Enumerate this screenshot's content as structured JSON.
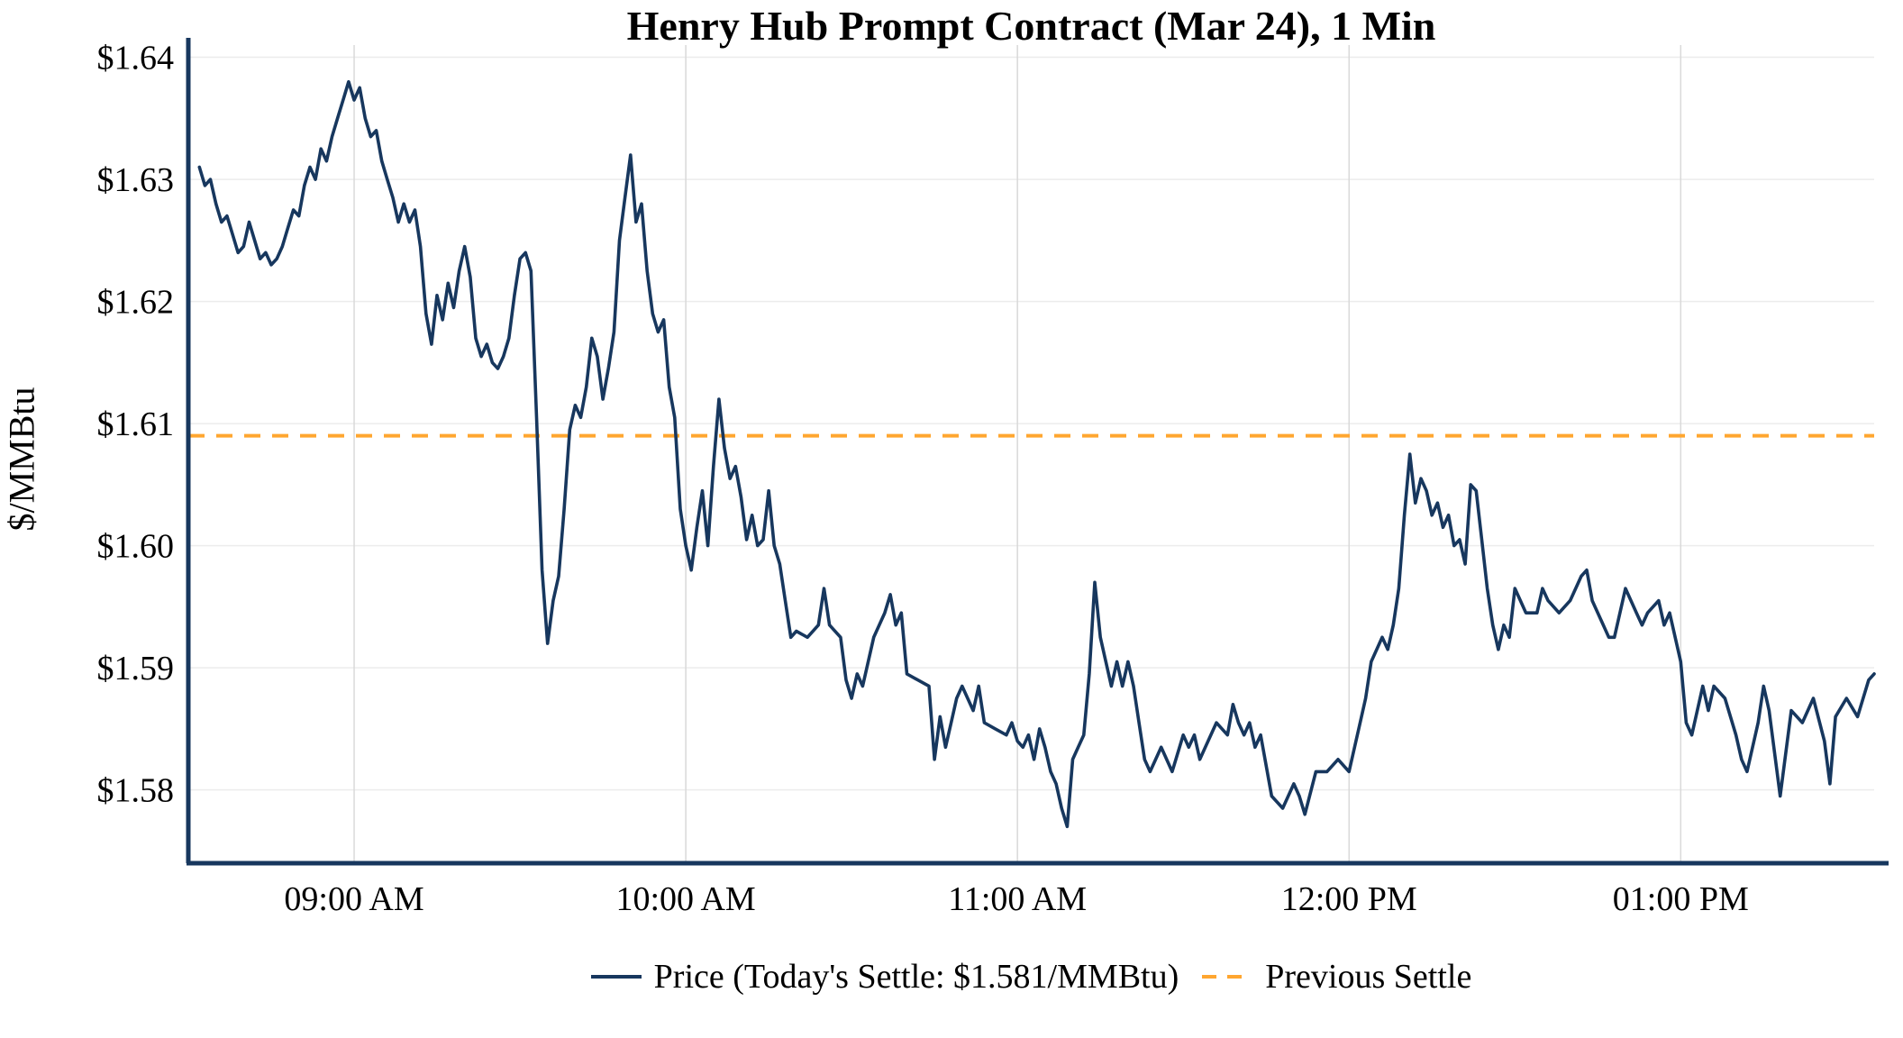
{
  "title": "Henry Hub Prompt Contract (Mar 24), 1 Min",
  "ylabel": "$/MMBtu",
  "legend": {
    "price_label": "Price (Today's Settle: $1.581/MMBtu)",
    "prev_settle_label": "Previous Settle"
  },
  "colors": {
    "price_line": "#17375e",
    "prev_settle": "#FFA630",
    "axis": "#17375e",
    "grid_v": "#d9d9d9",
    "grid_h": "#ececec",
    "text": "#000000"
  },
  "chart_data": {
    "type": "line",
    "title": "Henry Hub Prompt Contract (Mar 24), 1 Min",
    "xlabel": "",
    "ylabel": "$/MMBtu",
    "grid": true,
    "legend_position": "bottom",
    "x_unit": "minutes since 08:30 AM",
    "xlim": [
      0,
      305
    ],
    "ylim": [
      1.574,
      1.641
    ],
    "x_ticks": [
      {
        "t": 30,
        "label": "09:00 AM"
      },
      {
        "t": 90,
        "label": "10:00 AM"
      },
      {
        "t": 150,
        "label": "11:00 AM"
      },
      {
        "t": 210,
        "label": "12:00 PM"
      },
      {
        "t": 270,
        "label": "01:00 PM"
      }
    ],
    "y_ticks": [
      {
        "v": 1.58,
        "label": "$1.58"
      },
      {
        "v": 1.59,
        "label": "$1.59"
      },
      {
        "v": 1.6,
        "label": "$1.60"
      },
      {
        "v": 1.61,
        "label": "$1.61"
      },
      {
        "v": 1.62,
        "label": "$1.62"
      },
      {
        "v": 1.63,
        "label": "$1.63"
      },
      {
        "v": 1.64,
        "label": "$1.64"
      }
    ],
    "todays_settle_value": 1.581,
    "previous_settle_value": 1.609,
    "overlays": [
      {
        "name": "Previous Settle",
        "type": "hline",
        "value": 1.609,
        "style": "dashed",
        "color": "#FFA630"
      }
    ],
    "series": [
      {
        "name": "Price",
        "color": "#17375e",
        "points": [
          [
            2,
            1.631
          ],
          [
            3,
            1.6295
          ],
          [
            4,
            1.63
          ],
          [
            5,
            1.628
          ],
          [
            6,
            1.6265
          ],
          [
            7,
            1.627
          ],
          [
            8,
            1.6255
          ],
          [
            9,
            1.624
          ],
          [
            10,
            1.6245
          ],
          [
            11,
            1.6265
          ],
          [
            12,
            1.625
          ],
          [
            13,
            1.6235
          ],
          [
            14,
            1.624
          ],
          [
            15,
            1.623
          ],
          [
            16,
            1.6235
          ],
          [
            17,
            1.6245
          ],
          [
            18,
            1.626
          ],
          [
            19,
            1.6275
          ],
          [
            20,
            1.627
          ],
          [
            21,
            1.6295
          ],
          [
            22,
            1.631
          ],
          [
            23,
            1.63
          ],
          [
            24,
            1.6325
          ],
          [
            25,
            1.6315
          ],
          [
            26,
            1.6335
          ],
          [
            27,
            1.635
          ],
          [
            28,
            1.6365
          ],
          [
            29,
            1.638
          ],
          [
            30,
            1.6365
          ],
          [
            31,
            1.6375
          ],
          [
            32,
            1.635
          ],
          [
            33,
            1.6335
          ],
          [
            34,
            1.634
          ],
          [
            35,
            1.6315
          ],
          [
            36,
            1.63
          ],
          [
            37,
            1.6285
          ],
          [
            38,
            1.6265
          ],
          [
            39,
            1.628
          ],
          [
            40,
            1.6265
          ],
          [
            41,
            1.6275
          ],
          [
            42,
            1.6245
          ],
          [
            43,
            1.619
          ],
          [
            44,
            1.6165
          ],
          [
            45,
            1.6205
          ],
          [
            46,
            1.6185
          ],
          [
            47,
            1.6215
          ],
          [
            48,
            1.6195
          ],
          [
            49,
            1.6225
          ],
          [
            50,
            1.6245
          ],
          [
            51,
            1.622
          ],
          [
            52,
            1.617
          ],
          [
            53,
            1.6155
          ],
          [
            54,
            1.6165
          ],
          [
            55,
            1.615
          ],
          [
            56,
            1.6145
          ],
          [
            57,
            1.6155
          ],
          [
            58,
            1.617
          ],
          [
            59,
            1.6205
          ],
          [
            60,
            1.6235
          ],
          [
            61,
            1.624
          ],
          [
            62,
            1.6225
          ],
          [
            63,
            1.6105
          ],
          [
            64,
            1.598
          ],
          [
            65,
            1.592
          ],
          [
            66,
            1.5955
          ],
          [
            67,
            1.5975
          ],
          [
            68,
            1.603
          ],
          [
            69,
            1.6095
          ],
          [
            70,
            1.6115
          ],
          [
            71,
            1.6105
          ],
          [
            72,
            1.613
          ],
          [
            73,
            1.617
          ],
          [
            74,
            1.6155
          ],
          [
            75,
            1.612
          ],
          [
            76,
            1.6145
          ],
          [
            77,
            1.6175
          ],
          [
            78,
            1.625
          ],
          [
            79,
            1.6285
          ],
          [
            80,
            1.632
          ],
          [
            81,
            1.6265
          ],
          [
            82,
            1.628
          ],
          [
            83,
            1.6225
          ],
          [
            84,
            1.619
          ],
          [
            85,
            1.6175
          ],
          [
            86,
            1.6185
          ],
          [
            87,
            1.613
          ],
          [
            88,
            1.6105
          ],
          [
            89,
            1.603
          ],
          [
            90,
            1.6
          ],
          [
            91,
            1.598
          ],
          [
            92,
            1.6015
          ],
          [
            93,
            1.6045
          ],
          [
            94,
            1.6
          ],
          [
            95,
            1.6065
          ],
          [
            96,
            1.612
          ],
          [
            97,
            1.608
          ],
          [
            98,
            1.6055
          ],
          [
            99,
            1.6065
          ],
          [
            100,
            1.604
          ],
          [
            101,
            1.6005
          ],
          [
            102,
            1.6025
          ],
          [
            103,
            1.6
          ],
          [
            104,
            1.6005
          ],
          [
            105,
            1.6045
          ],
          [
            106,
            1.6
          ],
          [
            107,
            1.5985
          ],
          [
            108,
            1.5955
          ],
          [
            109,
            1.5925
          ],
          [
            110,
            1.593
          ],
          [
            112,
            1.5925
          ],
          [
            114,
            1.5935
          ],
          [
            115,
            1.5965
          ],
          [
            116,
            1.5935
          ],
          [
            118,
            1.5925
          ],
          [
            119,
            1.589
          ],
          [
            120,
            1.5875
          ],
          [
            121,
            1.5895
          ],
          [
            122,
            1.5885
          ],
          [
            124,
            1.5925
          ],
          [
            126,
            1.5945
          ],
          [
            127,
            1.596
          ],
          [
            128,
            1.5935
          ],
          [
            129,
            1.5945
          ],
          [
            130,
            1.5895
          ],
          [
            132,
            1.589
          ],
          [
            134,
            1.5885
          ],
          [
            135,
            1.5825
          ],
          [
            136,
            1.586
          ],
          [
            137,
            1.5835
          ],
          [
            138,
            1.5855
          ],
          [
            139,
            1.5875
          ],
          [
            140,
            1.5885
          ],
          [
            142,
            1.5865
          ],
          [
            143,
            1.5885
          ],
          [
            144,
            1.5855
          ],
          [
            146,
            1.585
          ],
          [
            148,
            1.5845
          ],
          [
            149,
            1.5855
          ],
          [
            150,
            1.584
          ],
          [
            151,
            1.5835
          ],
          [
            152,
            1.5845
          ],
          [
            153,
            1.5825
          ],
          [
            154,
            1.585
          ],
          [
            155,
            1.5835
          ],
          [
            156,
            1.5815
          ],
          [
            157,
            1.5805
          ],
          [
            158,
            1.5785
          ],
          [
            159,
            1.577
          ],
          [
            160,
            1.5825
          ],
          [
            161,
            1.5835
          ],
          [
            162,
            1.5845
          ],
          [
            163,
            1.5895
          ],
          [
            164,
            1.597
          ],
          [
            165,
            1.5925
          ],
          [
            166,
            1.5905
          ],
          [
            167,
            1.5885
          ],
          [
            168,
            1.5905
          ],
          [
            169,
            1.5885
          ],
          [
            170,
            1.5905
          ],
          [
            171,
            1.5885
          ],
          [
            172,
            1.5855
          ],
          [
            173,
            1.5825
          ],
          [
            174,
            1.5815
          ],
          [
            176,
            1.5835
          ],
          [
            178,
            1.5815
          ],
          [
            180,
            1.5845
          ],
          [
            181,
            1.5835
          ],
          [
            182,
            1.5845
          ],
          [
            183,
            1.5825
          ],
          [
            184,
            1.5835
          ],
          [
            186,
            1.5855
          ],
          [
            188,
            1.5845
          ],
          [
            189,
            1.587
          ],
          [
            190,
            1.5855
          ],
          [
            191,
            1.5845
          ],
          [
            192,
            1.5855
          ],
          [
            193,
            1.5835
          ],
          [
            194,
            1.5845
          ],
          [
            196,
            1.5795
          ],
          [
            198,
            1.5785
          ],
          [
            200,
            1.5805
          ],
          [
            201,
            1.5795
          ],
          [
            202,
            1.578
          ],
          [
            204,
            1.5815
          ],
          [
            206,
            1.5815
          ],
          [
            208,
            1.5825
          ],
          [
            210,
            1.5815
          ],
          [
            212,
            1.5855
          ],
          [
            213,
            1.5875
          ],
          [
            214,
            1.5905
          ],
          [
            216,
            1.5925
          ],
          [
            217,
            1.5915
          ],
          [
            218,
            1.5935
          ],
          [
            219,
            1.5965
          ],
          [
            220,
            1.6025
          ],
          [
            221,
            1.6075
          ],
          [
            222,
            1.6035
          ],
          [
            223,
            1.6055
          ],
          [
            224,
            1.6045
          ],
          [
            225,
            1.6025
          ],
          [
            226,
            1.6035
          ],
          [
            227,
            1.6015
          ],
          [
            228,
            1.6025
          ],
          [
            229,
            1.6
          ],
          [
            230,
            1.6005
          ],
          [
            231,
            1.5985
          ],
          [
            232,
            1.605
          ],
          [
            233,
            1.6045
          ],
          [
            234,
            1.6005
          ],
          [
            235,
            1.5965
          ],
          [
            236,
            1.5935
          ],
          [
            237,
            1.5915
          ],
          [
            238,
            1.5935
          ],
          [
            239,
            1.5925
          ],
          [
            240,
            1.5965
          ],
          [
            241,
            1.5955
          ],
          [
            242,
            1.5945
          ],
          [
            244,
            1.5945
          ],
          [
            245,
            1.5965
          ],
          [
            246,
            1.5955
          ],
          [
            248,
            1.5945
          ],
          [
            250,
            1.5955
          ],
          [
            252,
            1.5975
          ],
          [
            253,
            1.598
          ],
          [
            254,
            1.5955
          ],
          [
            256,
            1.5935
          ],
          [
            257,
            1.5925
          ],
          [
            258,
            1.5925
          ],
          [
            260,
            1.5965
          ],
          [
            262,
            1.5945
          ],
          [
            263,
            1.5935
          ],
          [
            264,
            1.5945
          ],
          [
            266,
            1.5955
          ],
          [
            267,
            1.5935
          ],
          [
            268,
            1.5945
          ],
          [
            270,
            1.5905
          ],
          [
            271,
            1.5855
          ],
          [
            272,
            1.5845
          ],
          [
            274,
            1.5885
          ],
          [
            275,
            1.5865
          ],
          [
            276,
            1.5885
          ],
          [
            278,
            1.5875
          ],
          [
            280,
            1.5845
          ],
          [
            281,
            1.5825
          ],
          [
            282,
            1.5815
          ],
          [
            284,
            1.5855
          ],
          [
            285,
            1.5885
          ],
          [
            286,
            1.5865
          ],
          [
            288,
            1.5795
          ],
          [
            290,
            1.5865
          ],
          [
            292,
            1.5855
          ],
          [
            294,
            1.5875
          ],
          [
            296,
            1.584
          ],
          [
            297,
            1.5805
          ],
          [
            298,
            1.586
          ],
          [
            300,
            1.5875
          ],
          [
            302,
            1.586
          ],
          [
            304,
            1.589
          ],
          [
            305,
            1.5895
          ]
        ]
      }
    ]
  }
}
